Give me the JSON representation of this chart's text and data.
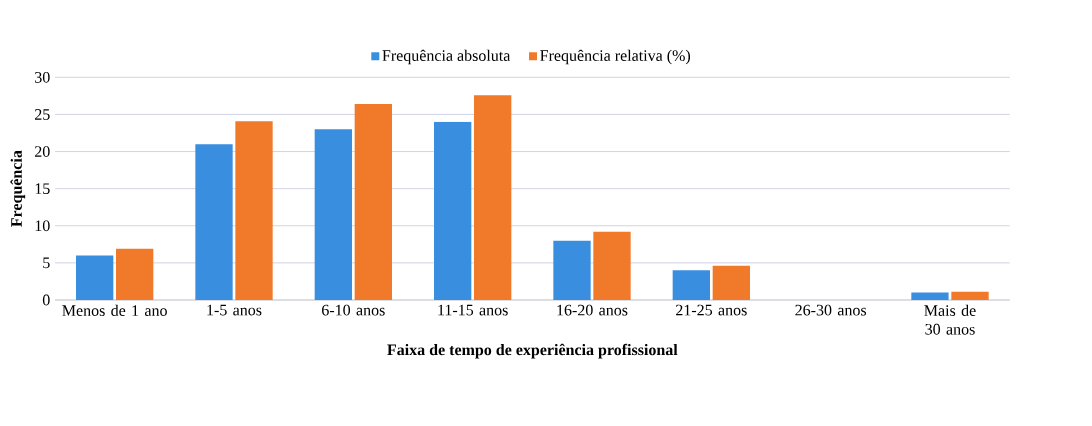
{
  "chart_data": {
    "type": "bar",
    "xlabel": "Faixa de tempo de experiência profissional",
    "ylabel": "Frequência",
    "categories": [
      "Menos de 1 ano",
      "1-5 anos",
      "6-10 anos",
      "11-15 anos",
      "16-20 anos",
      "21-25 anos",
      "26-30 anos",
      "Mais de 30 anos"
    ],
    "series": [
      {
        "name": "Frequência absoluta",
        "color": "#3a8ee0",
        "values": [
          6,
          21,
          23,
          24,
          8,
          4,
          0,
          1
        ]
      },
      {
        "name": "Frequência relativa (%)",
        "color": "#f07a2a",
        "values": [
          6.9,
          24.1,
          26.4,
          27.6,
          9.2,
          4.6,
          0,
          1.1
        ]
      }
    ],
    "ylim": [
      0,
      30
    ],
    "yticks": [
      0,
      5,
      10,
      15,
      20,
      25,
      30
    ],
    "grid": "y",
    "legend": "top"
  }
}
